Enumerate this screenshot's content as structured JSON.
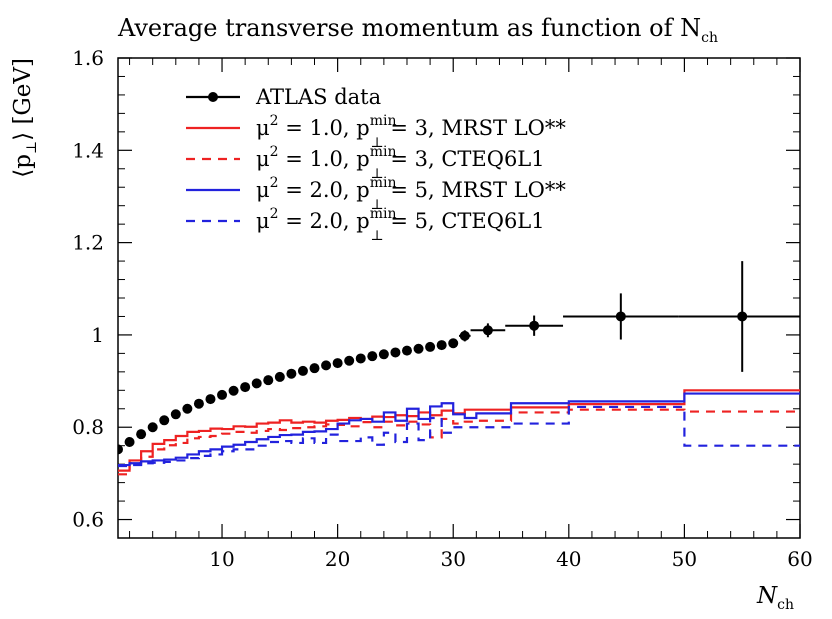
{
  "chart_data": {
    "type": "line",
    "title": "Average transverse momentum as function of N",
    "title_sub": "ch",
    "xlabel": {
      "main": "N",
      "sub": "ch"
    },
    "ylabel": {
      "main": "⟨p",
      "sub": "⊥",
      "tail": "⟩ [GeV]"
    },
    "xlim": [
      1,
      60
    ],
    "ylim": [
      0.56,
      1.6
    ],
    "xticks": [
      10,
      20,
      30,
      40,
      50,
      60
    ],
    "xtick_labels": [
      "10",
      "20",
      "30",
      "40",
      "50",
      "60"
    ],
    "yticks": [
      0.6,
      0.8,
      1.0,
      1.2,
      1.4,
      1.6
    ],
    "ytick_labels": [
      "0.6",
      "0.8",
      "1",
      "1.2",
      "1.4",
      "1.6"
    ],
    "grid": false,
    "legend_position": "top-left",
    "legend": [
      {
        "series": 0,
        "parts": [
          {
            "t": "ATLAS data"
          }
        ]
      },
      {
        "series": 1,
        "parts": [
          {
            "t": "μ"
          },
          {
            "t": "2",
            "s": "sup"
          },
          {
            "t": " = 1.0, p"
          },
          {
            "t": "min",
            "s": "sup"
          },
          {
            "t": "⊥",
            "s": "sub"
          },
          {
            "t": " = 3, MRST LO**"
          }
        ]
      },
      {
        "series": 2,
        "parts": [
          {
            "t": "μ"
          },
          {
            "t": "2",
            "s": "sup"
          },
          {
            "t": " = 1.0, p"
          },
          {
            "t": "min",
            "s": "sup"
          },
          {
            "t": "⊥",
            "s": "sub"
          },
          {
            "t": " = 3, CTEQ6L1"
          }
        ]
      },
      {
        "series": 3,
        "parts": [
          {
            "t": "μ"
          },
          {
            "t": "2",
            "s": "sup"
          },
          {
            "t": " = 2.0, p"
          },
          {
            "t": "min",
            "s": "sup"
          },
          {
            "t": "⊥",
            "s": "sub"
          },
          {
            "t": " = 5, MRST LO**"
          }
        ]
      },
      {
        "series": 4,
        "parts": [
          {
            "t": "μ"
          },
          {
            "t": "2",
            "s": "sup"
          },
          {
            "t": " = 2.0, p"
          },
          {
            "t": "min",
            "s": "sup"
          },
          {
            "t": "⊥",
            "s": "sub"
          },
          {
            "t": " = 5, CTEQ6L1"
          }
        ]
      }
    ],
    "series": [
      {
        "kind": "points",
        "color": "#000000",
        "x": [
          1,
          2,
          3,
          4,
          5,
          6,
          7,
          8,
          9,
          10,
          11,
          12,
          13,
          14,
          15,
          16,
          17,
          18,
          19,
          20,
          21,
          22,
          23,
          24,
          25,
          26,
          27,
          28,
          29,
          30,
          31,
          33,
          37,
          44.5,
          55
        ],
        "y": [
          0.752,
          0.768,
          0.785,
          0.8,
          0.815,
          0.828,
          0.84,
          0.851,
          0.861,
          0.87,
          0.879,
          0.887,
          0.895,
          0.902,
          0.909,
          0.916,
          0.922,
          0.928,
          0.934,
          0.939,
          0.944,
          0.949,
          0.954,
          0.958,
          0.962,
          0.966,
          0.97,
          0.974,
          0.978,
          0.982,
          0.998,
          1.01,
          1.02,
          1.04,
          1.04
        ],
        "xerr": [
          0,
          0,
          0,
          0,
          0,
          0,
          0,
          0,
          0,
          0,
          0,
          0,
          0,
          0,
          0,
          0,
          0,
          0,
          0,
          0,
          0,
          0,
          0,
          0,
          0,
          0,
          0,
          0,
          0,
          0,
          0.5,
          1.5,
          2.5,
          5,
          5.5
        ],
        "yerr": [
          0,
          0,
          0,
          0,
          0,
          0,
          0,
          0,
          0,
          0,
          0,
          0,
          0,
          0,
          0,
          0,
          0,
          0,
          0,
          0,
          0,
          0,
          0,
          0,
          0,
          0,
          0,
          0,
          0,
          0,
          0.012,
          0.015,
          0.022,
          0.05,
          0.12
        ]
      },
      {
        "kind": "step",
        "color": "#ee2222",
        "dash": "",
        "edges": [
          1,
          2,
          3,
          4,
          5,
          6,
          7,
          8,
          9,
          10,
          11,
          12,
          13,
          14,
          15,
          16,
          17,
          18,
          19,
          20,
          21,
          22,
          23,
          24,
          25,
          26,
          27,
          28,
          29,
          30,
          31,
          32,
          35,
          40,
          50,
          61
        ],
        "values": [
          0.706,
          0.728,
          0.748,
          0.764,
          0.772,
          0.781,
          0.79,
          0.792,
          0.797,
          0.796,
          0.802,
          0.801,
          0.808,
          0.81,
          0.815,
          0.81,
          0.812,
          0.81,
          0.814,
          0.816,
          0.82,
          0.818,
          0.823,
          0.822,
          0.826,
          0.824,
          0.832,
          0.826,
          0.836,
          0.83,
          0.838,
          0.838,
          0.843,
          0.85,
          0.88
        ]
      },
      {
        "kind": "step",
        "color": "#ee2222",
        "dash": "9,7",
        "edges": [
          1,
          2,
          3,
          4,
          5,
          6,
          7,
          8,
          9,
          10,
          11,
          12,
          13,
          14,
          15,
          16,
          17,
          18,
          19,
          20,
          21,
          22,
          23,
          24,
          25,
          26,
          27,
          28,
          29,
          30,
          31,
          32,
          35,
          40,
          50,
          61
        ],
        "values": [
          0.698,
          0.722,
          0.736,
          0.752,
          0.761,
          0.766,
          0.776,
          0.779,
          0.781,
          0.786,
          0.79,
          0.788,
          0.792,
          0.796,
          0.794,
          0.798,
          0.8,
          0.802,
          0.806,
          0.805,
          0.802,
          0.811,
          0.8,
          0.812,
          0.804,
          0.812,
          0.806,
          0.778,
          0.818,
          0.808,
          0.812,
          0.814,
          0.832,
          0.838,
          0.834
        ]
      },
      {
        "kind": "step",
        "color": "#2222dd",
        "dash": "",
        "edges": [
          1,
          2,
          3,
          4,
          5,
          6,
          7,
          8,
          9,
          10,
          11,
          12,
          13,
          14,
          15,
          16,
          17,
          18,
          19,
          20,
          21,
          22,
          23,
          24,
          25,
          26,
          27,
          28,
          29,
          30,
          31,
          32,
          35,
          40,
          50,
          61
        ],
        "values": [
          0.718,
          0.722,
          0.726,
          0.728,
          0.73,
          0.734,
          0.741,
          0.748,
          0.752,
          0.758,
          0.762,
          0.768,
          0.774,
          0.779,
          0.783,
          0.784,
          0.79,
          0.791,
          0.796,
          0.808,
          0.815,
          0.818,
          0.812,
          0.832,
          0.814,
          0.84,
          0.818,
          0.845,
          0.852,
          0.828,
          0.82,
          0.83,
          0.852,
          0.856,
          0.873
        ]
      },
      {
        "kind": "step",
        "color": "#2222dd",
        "dash": "9,7",
        "edges": [
          1,
          2,
          3,
          4,
          5,
          6,
          7,
          8,
          9,
          10,
          11,
          12,
          13,
          14,
          15,
          16,
          17,
          18,
          19,
          20,
          21,
          22,
          23,
          24,
          25,
          26,
          27,
          28,
          29,
          30,
          31,
          32,
          35,
          40,
          50,
          61
        ],
        "values": [
          0.716,
          0.718,
          0.722,
          0.723,
          0.725,
          0.728,
          0.733,
          0.738,
          0.741,
          0.748,
          0.752,
          0.752,
          0.76,
          0.768,
          0.77,
          0.766,
          0.776,
          0.766,
          0.784,
          0.77,
          0.77,
          0.778,
          0.762,
          0.788,
          0.768,
          0.808,
          0.772,
          0.82,
          0.788,
          0.8,
          0.8,
          0.8,
          0.808,
          0.844,
          0.76
        ]
      }
    ]
  }
}
